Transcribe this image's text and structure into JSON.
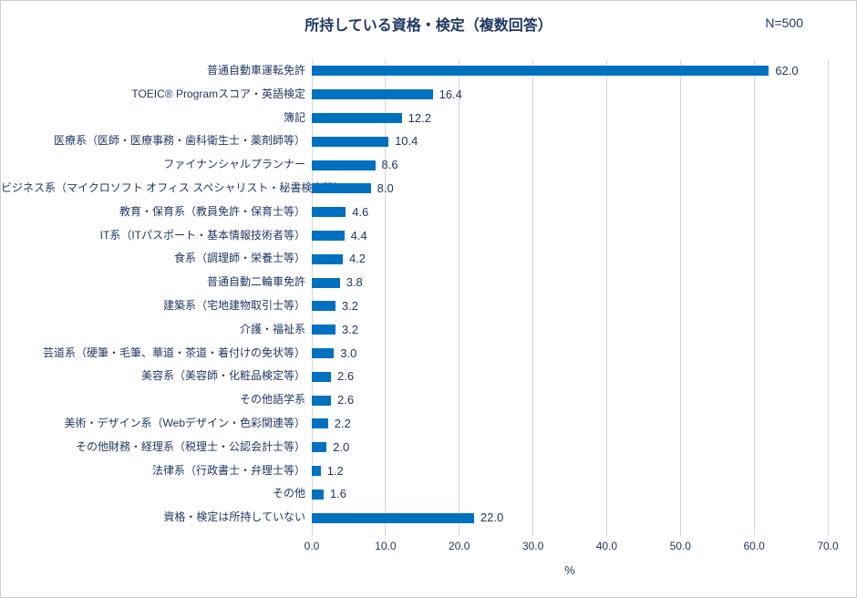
{
  "title": "所持している資格・検定（複数回答）",
  "n_label": "N=500",
  "chart_data": {
    "type": "bar",
    "orientation": "horizontal",
    "title": "所持している資格・検定（複数回答）",
    "n_label": "N=500",
    "categories": [
      "普通自動車運転免許",
      "TOEIC® Programスコア・英語検定",
      "簿記",
      "医療系（医師・医療事務・歯科衛生士・薬剤師等）",
      "ファイナンシャルプランナー",
      "ビジネス系（マイクロソフト オフィス スペシャリスト・秘書検定等）",
      "教育・保育系（教員免許・保育士等）",
      "IT系（ITパスポート・基本情報技術者等）",
      "食系（調理師・栄養士等）",
      "普通自動二輪車免許",
      "建築系（宅地建物取引士等）",
      "介護・福祉系",
      "芸道系（硬筆・毛筆、華道・茶道・着付けの免状等）",
      "美容系（美容師・化粧品検定等）",
      "その他語学系",
      "美術・デザイン系（Webデザイン・色彩関連等）",
      "その他財務・経理系（税理士・公認会計士等）",
      "法律系（行政書士・弁理士等）",
      "その他",
      "資格・検定は所持していない"
    ],
    "values": [
      62.0,
      16.4,
      12.2,
      10.4,
      8.6,
      8.0,
      4.6,
      4.4,
      4.2,
      3.8,
      3.2,
      3.2,
      3.0,
      2.6,
      2.6,
      2.2,
      2.0,
      1.2,
      1.6,
      22.0
    ],
    "xlabel": "%",
    "x_ticks": [
      "0.0",
      "10.0",
      "20.0",
      "30.0",
      "40.0",
      "50.0",
      "60.0",
      "70.0"
    ],
    "xlim": [
      0,
      70
    ],
    "grid": true,
    "legend": "none",
    "colors": {
      "bar": "#0070C0",
      "text": "#1F3864",
      "gridline": "#D6D6D6",
      "border": "#D0D0D0"
    }
  }
}
